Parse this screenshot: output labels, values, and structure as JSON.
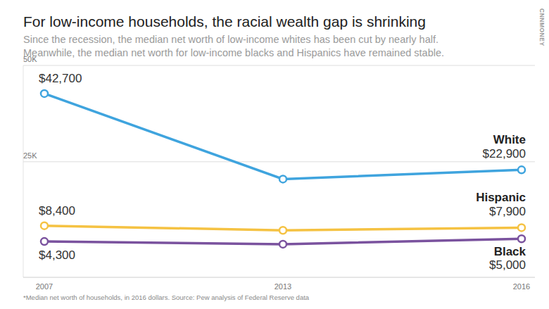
{
  "chart_data": {
    "type": "line",
    "title": "For low-income households, the racial wealth gap is shrinking",
    "subtitle": [
      "Since the recession, the median net worth of low-income whites has been cut by nearly half.",
      "Meanwhile, the median net worth for low-income blacks and Hispanics have remained stable."
    ],
    "brand": "CNNMONEY",
    "footnote": "*Median net worth of households, in 2016 dollars. Source: Pew analysis of Federal Reserve data",
    "categories": [
      "2007",
      "2013",
      "2016"
    ],
    "series": [
      {
        "name": "White",
        "color": "#3fa4de",
        "values": [
          42700,
          20500,
          22900
        ],
        "value_labels": [
          "$42,700",
          null,
          "$22,900"
        ]
      },
      {
        "name": "Hispanic",
        "color": "#f5c242",
        "values": [
          8400,
          7200,
          7900
        ],
        "value_labels": [
          "$8,400",
          null,
          "$7,900"
        ]
      },
      {
        "name": "Black",
        "color": "#7a529e",
        "values": [
          4300,
          3600,
          5000
        ],
        "value_labels": [
          "$4,300",
          null,
          "$5,000"
        ]
      }
    ],
    "ylim": [
      -5000,
      50000
    ],
    "yticks": [
      {
        "value": 25000,
        "label": "25K"
      },
      {
        "value": 50000,
        "label": "50K"
      }
    ],
    "grid": true,
    "data_labels": true,
    "marker": "circle"
  }
}
